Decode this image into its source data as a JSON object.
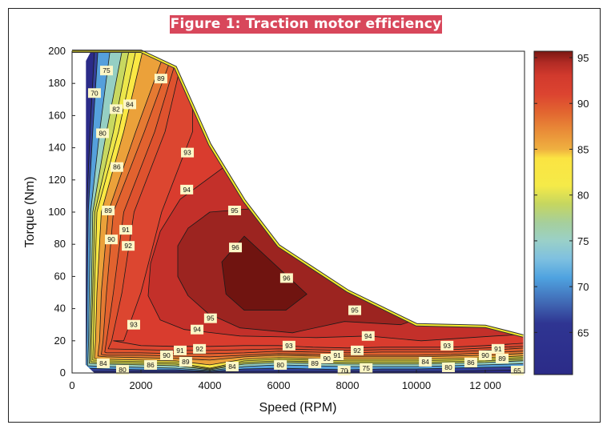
{
  "chart_data": {
    "type": "contour",
    "title": "Figure 1: Traction motor efficiency map",
    "xlabel": "Speed (RPM)",
    "ylabel": "Torque (Nm)",
    "xlim": [
      0,
      13140
    ],
    "ylim": [
      0,
      200
    ],
    "xticks": [
      {
        "value": 0,
        "label": "0"
      },
      {
        "value": 2000,
        "label": "2000"
      },
      {
        "value": 4000,
        "label": "4000"
      },
      {
        "value": 6000,
        "label": "6000"
      },
      {
        "value": 8000,
        "label": "8000"
      },
      {
        "value": 10000,
        "label": "10000"
      },
      {
        "value": 12000,
        "label": "12 000"
      }
    ],
    "yticks": [
      0,
      20,
      40,
      60,
      80,
      100,
      120,
      140,
      160,
      180,
      200
    ],
    "colorbar": {
      "range": [
        60.4,
        95.7
      ],
      "ticks": [
        65,
        70,
        75,
        80,
        85,
        90,
        95
      ],
      "stops": [
        [
          60.4,
          "#2b2b88"
        ],
        [
          66,
          "#2f3592"
        ],
        [
          68,
          "#3f63b0"
        ],
        [
          71,
          "#4fa3e0"
        ],
        [
          73,
          "#7ec0e0"
        ],
        [
          75,
          "#9ad0c8"
        ],
        [
          77,
          "#a6cf9c"
        ],
        [
          79,
          "#c5d660"
        ],
        [
          81,
          "#f5ea48"
        ],
        [
          84,
          "#fbe442"
        ],
        [
          85,
          "#efb040"
        ],
        [
          87,
          "#e98c38"
        ],
        [
          89,
          "#e26630"
        ],
        [
          91,
          "#dc4430"
        ],
        [
          93,
          "#d23a2d"
        ],
        [
          94.5,
          "#b02a24"
        ],
        [
          95.7,
          "#7a1712"
        ]
      ]
    },
    "envelope": [
      [
        400,
        5
      ],
      [
        650,
        0
      ],
      [
        13100,
        0
      ],
      [
        13100,
        23
      ],
      [
        12000,
        29
      ],
      [
        10000,
        30
      ],
      [
        8000,
        51
      ],
      [
        6000,
        79
      ],
      [
        5000,
        107
      ],
      [
        4000,
        142
      ],
      [
        3000,
        190
      ],
      [
        2000,
        200
      ],
      [
        550,
        200
      ],
      [
        400,
        194
      ]
    ],
    "envelope_top": [
      [
        0,
        200
      ],
      [
        2000,
        200
      ],
      [
        3000,
        190
      ],
      [
        4000,
        142
      ],
      [
        5000,
        107
      ],
      [
        6000,
        79
      ],
      [
        8000,
        51
      ],
      [
        10000,
        30
      ],
      [
        12000,
        29
      ],
      [
        13100,
        23
      ]
    ],
    "base_color": "#2b2b88",
    "bottom_rpm": [
      0,
      1000,
      2000,
      3000,
      4000,
      5000,
      6000,
      7000,
      8000,
      9000,
      10000,
      11000,
      12000,
      13500
    ],
    "left_torque": [
      0,
      20,
      50,
      100,
      150,
      200
    ],
    "levels": [
      {
        "level": 65,
        "color": "#34409a",
        "left": [
          380,
          390,
          400,
          420,
          520,
          650
        ],
        "bottom": [
          1,
          1,
          1,
          1,
          0.5,
          1,
          1,
          1,
          1,
          1,
          1,
          1,
          1.5,
          2
        ]
      },
      {
        "level": 70,
        "color": "#55a0dc",
        "left": [
          400,
          420,
          440,
          470,
          600,
          750
        ],
        "bottom": [
          3,
          2.5,
          2,
          2,
          1,
          2.5,
          3,
          2.5,
          2,
          2.5,
          2.5,
          3,
          3.5,
          4
        ]
      },
      {
        "level": 75,
        "color": "#95cfc3",
        "left": [
          450,
          480,
          500,
          540,
          800,
          1100
        ],
        "bottom": [
          4.5,
          4,
          3.5,
          3,
          1.5,
          4,
          5,
          4.5,
          4,
          4,
          4,
          4.5,
          5,
          6
        ]
      },
      {
        "level": 80,
        "color": "#c8d860",
        "left": [
          500,
          520,
          560,
          600,
          1000,
          1450
        ],
        "bottom": [
          6,
          5.5,
          5,
          4.5,
          2,
          5.5,
          6.5,
          6,
          5.5,
          5.5,
          5.5,
          6,
          6.5,
          8
        ]
      },
      {
        "level": 82,
        "color": "#ece64a",
        "left": [
          550,
          560,
          600,
          660,
          1200,
          1650
        ],
        "bottom": [
          7,
          6.5,
          6,
          5.5,
          2.5,
          6.5,
          7.5,
          7,
          6.5,
          6.5,
          6.5,
          7,
          7.5,
          9
        ]
      },
      {
        "level": 84,
        "color": "#fbe844",
        "left": [
          600,
          620,
          650,
          720,
          1350,
          1850
        ],
        "bottom": [
          8,
          7.5,
          7,
          6.5,
          3,
          7.5,
          8.5,
          8,
          7.5,
          7.5,
          7.5,
          8,
          8.5,
          10
        ]
      },
      {
        "level": 86,
        "color": "#eba13a",
        "left": [
          650,
          680,
          720,
          850,
          1500,
          2050
        ],
        "bottom": [
          9,
          8.5,
          8,
          7.5,
          5,
          8.5,
          9.5,
          9,
          8.5,
          8.5,
          8.5,
          9,
          9.5,
          11
        ]
      },
      {
        "level": 89,
        "color": "#e57a32",
        "left": [
          750,
          800,
          850,
          1050,
          1850,
          2700
        ],
        "bottom": [
          10.5,
          10,
          9.5,
          9,
          8,
          10,
          11,
          10.5,
          10,
          10,
          10,
          10.5,
          11,
          12.5
        ]
      },
      {
        "level": 90,
        "color": "#e2622f",
        "left": [
          850,
          900,
          1000,
          1200,
          2100,
          2950
        ],
        "bottom": [
          11.5,
          11,
          11,
          10.5,
          10,
          11,
          12,
          11.5,
          11,
          11,
          11,
          11.5,
          12.5,
          14
        ]
      },
      {
        "level": 91,
        "color": "#de522e",
        "left": [
          950,
          1000,
          1200,
          1500,
          2400,
          3100
        ],
        "bottom": [
          13,
          12.5,
          12.5,
          12,
          12,
          12.5,
          13.5,
          13,
          12.5,
          13,
          13,
          13,
          14,
          16
        ]
      },
      {
        "level": 92,
        "color": "#dc4630",
        "left": [
          1050,
          1150,
          1450,
          1800,
          2700,
          3250
        ],
        "bottom": [
          15,
          14.5,
          14.5,
          14,
          14,
          14.5,
          15,
          14.5,
          14,
          14.5,
          14.5,
          14.5,
          15.5,
          17
        ]
      },
      {
        "level": 93,
        "color": "#d93c2e",
        "left": [
          1200,
          1500,
          2000,
          2600,
          3500,
          3500
        ],
        "bottom": [
          20,
          17,
          17,
          16.5,
          16.5,
          17,
          17,
          16,
          15.5,
          16,
          16,
          16,
          17,
          19
        ]
      },
      {
        "level": 94,
        "color": "#c3302a",
        "polygon": [
          [
            4350,
            127
          ],
          [
            3140,
            108
          ],
          [
            2560,
            88
          ],
          [
            2280,
            68
          ],
          [
            2210,
            48
          ],
          [
            2560,
            33
          ],
          [
            3260,
            27
          ],
          [
            4880,
            23
          ],
          [
            7090,
            22
          ],
          [
            8600,
            23
          ],
          [
            10140,
            20
          ],
          [
            12280,
            23
          ],
          [
            14000,
            25
          ],
          [
            14000,
            150
          ],
          [
            4650,
            132
          ]
        ]
      },
      {
        "level": 95,
        "color": "#9c2420",
        "polygon": [
          [
            4000,
            100
          ],
          [
            3370,
            90
          ],
          [
            3070,
            79
          ],
          [
            3070,
            60
          ],
          [
            3370,
            48
          ],
          [
            3950,
            37
          ],
          [
            4880,
            28
          ],
          [
            6400,
            25
          ],
          [
            7910,
            32
          ],
          [
            9540,
            30
          ],
          [
            10120,
            34
          ],
          [
            10120,
            80
          ],
          [
            5300,
            120
          ],
          [
            5150,
            102
          ]
        ]
      },
      {
        "level": 96,
        "color": "#701410",
        "polygon": [
          [
            5000,
            85
          ],
          [
            4350,
            69
          ],
          [
            4470,
            49
          ],
          [
            5000,
            39
          ],
          [
            6210,
            39
          ],
          [
            6820,
            49
          ]
        ]
      }
    ],
    "labels": [
      {
        "text": "75",
        "rpm": 1000,
        "torque": 188
      },
      {
        "text": "70",
        "rpm": 650,
        "torque": 174
      },
      {
        "text": "89",
        "rpm": 2580,
        "torque": 183
      },
      {
        "text": "82",
        "rpm": 1280,
        "torque": 164
      },
      {
        "text": "84",
        "rpm": 1675,
        "torque": 167
      },
      {
        "text": "80",
        "rpm": 885,
        "torque": 149
      },
      {
        "text": "93",
        "rpm": 3350,
        "torque": 137
      },
      {
        "text": "86",
        "rpm": 1300,
        "torque": 128
      },
      {
        "text": "94",
        "rpm": 3330,
        "torque": 114
      },
      {
        "text": "89",
        "rpm": 1050,
        "torque": 101
      },
      {
        "text": "95",
        "rpm": 4720,
        "torque": 101
      },
      {
        "text": "91",
        "rpm": 1560,
        "torque": 89
      },
      {
        "text": "90",
        "rpm": 1140,
        "torque": 83
      },
      {
        "text": "96",
        "rpm": 4745,
        "torque": 78
      },
      {
        "text": "92",
        "rpm": 1630,
        "torque": 79
      },
      {
        "text": "96",
        "rpm": 6230,
        "torque": 59
      },
      {
        "text": "95",
        "rpm": 8210,
        "torque": 39
      },
      {
        "text": "93",
        "rpm": 1790,
        "torque": 30
      },
      {
        "text": "95",
        "rpm": 4020,
        "torque": 34
      },
      {
        "text": "94",
        "rpm": 3630,
        "torque": 27
      },
      {
        "text": "94",
        "rpm": 8600,
        "torque": 23
      },
      {
        "text": "91",
        "rpm": 3140,
        "torque": 14
      },
      {
        "text": "92",
        "rpm": 3700,
        "torque": 15
      },
      {
        "text": "90",
        "rpm": 2745,
        "torque": 11
      },
      {
        "text": "93",
        "rpm": 6300,
        "torque": 17
      },
      {
        "text": "93",
        "rpm": 10890,
        "torque": 17
      },
      {
        "text": "92",
        "rpm": 8280,
        "torque": 14
      },
      {
        "text": "91",
        "rpm": 7700,
        "torque": 11
      },
      {
        "text": "90",
        "rpm": 7400,
        "torque": 9
      },
      {
        "text": "89",
        "rpm": 7050,
        "torque": 6
      },
      {
        "text": "89",
        "rpm": 3300,
        "torque": 7
      },
      {
        "text": "86",
        "rpm": 2280,
        "torque": 5
      },
      {
        "text": "84",
        "rpm": 905,
        "torque": 6
      },
      {
        "text": "80",
        "rpm": 1465,
        "torque": 2
      },
      {
        "text": "84",
        "rpm": 4650,
        "torque": 4
      },
      {
        "text": "80",
        "rpm": 6050,
        "torque": 5
      },
      {
        "text": "70",
        "rpm": 7900,
        "torque": 1.5
      },
      {
        "text": "75",
        "rpm": 8540,
        "torque": 3
      },
      {
        "text": "84",
        "rpm": 10260,
        "torque": 7
      },
      {
        "text": "80",
        "rpm": 10930,
        "torque": 3.5
      },
      {
        "text": "86",
        "rpm": 11580,
        "torque": 6.5
      },
      {
        "text": "90",
        "rpm": 12000,
        "torque": 11
      },
      {
        "text": "91",
        "rpm": 12370,
        "torque": 15
      },
      {
        "text": "89",
        "rpm": 12490,
        "torque": 9
      },
      {
        "text": "65",
        "rpm": 12930,
        "torque": 1.5
      }
    ]
  }
}
